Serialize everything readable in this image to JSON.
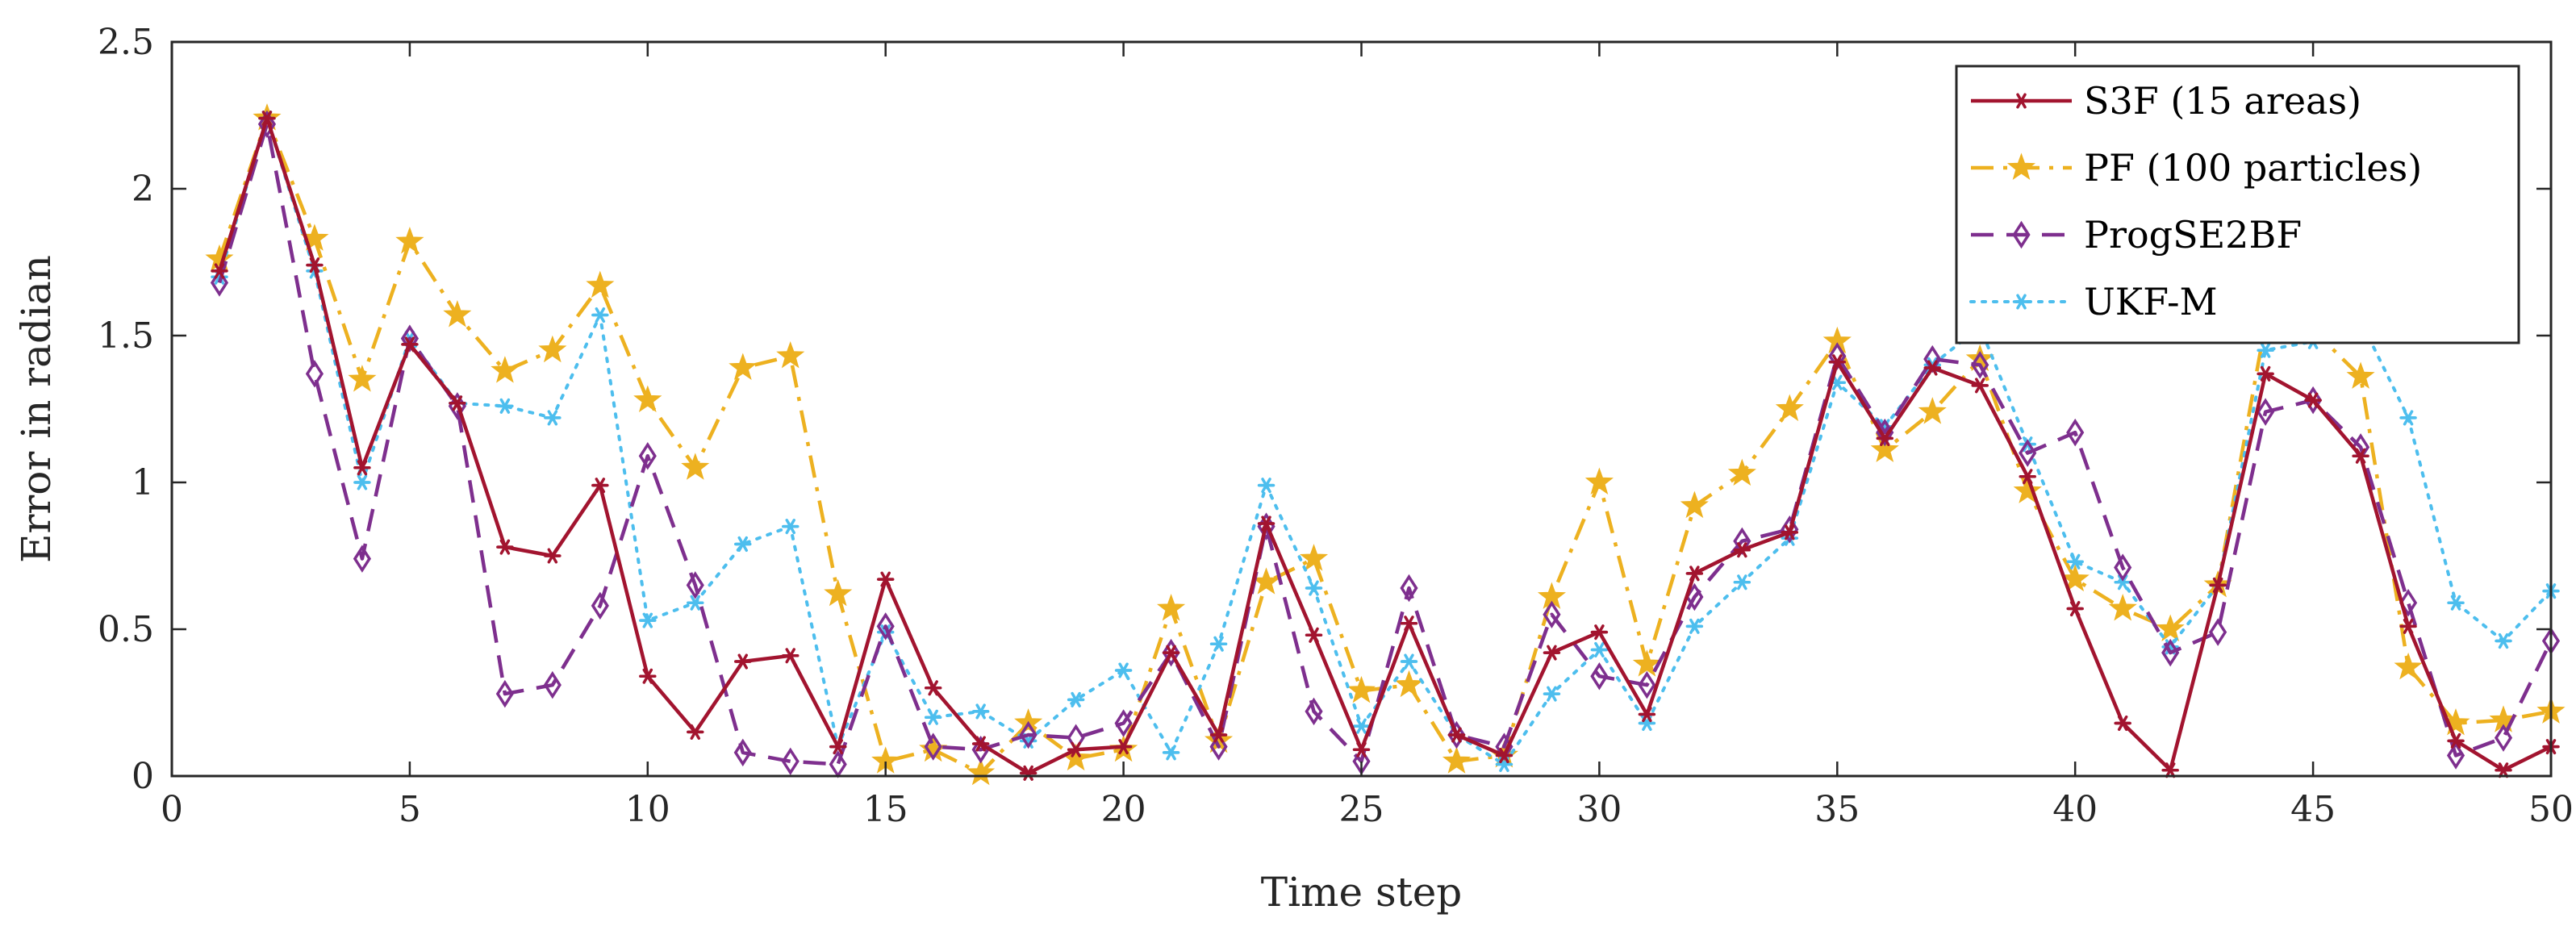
{
  "chart_data": {
    "type": "line",
    "title": "",
    "xlabel": "Time step",
    "ylabel": "Error in radian",
    "xlim": [
      0,
      50
    ],
    "ylim": [
      0,
      2.5
    ],
    "xticks": [
      0,
      5,
      10,
      15,
      20,
      25,
      30,
      35,
      40,
      45,
      50
    ],
    "yticks": [
      0,
      0.5,
      1,
      1.5,
      2,
      2.5
    ],
    "xtick_labels": [
      "0",
      "5",
      "10",
      "15",
      "20",
      "25",
      "30",
      "35",
      "40",
      "45",
      "50"
    ],
    "ytick_labels": [
      "0",
      "0.5",
      "1",
      "1.5",
      "2",
      "2.5"
    ],
    "legend_position": "top-right",
    "x": [
      1,
      2,
      3,
      4,
      5,
      6,
      7,
      8,
      9,
      10,
      11,
      12,
      13,
      14,
      15,
      16,
      17,
      18,
      19,
      20,
      21,
      22,
      23,
      24,
      25,
      26,
      27,
      28,
      29,
      30,
      31,
      32,
      33,
      34,
      35,
      36,
      37,
      38,
      39,
      40,
      41,
      42,
      43,
      44,
      45,
      46,
      47,
      48,
      49,
      50
    ],
    "series": [
      {
        "name": "S3F (15 areas)",
        "color": "#A2142F",
        "dash": "solid",
        "marker": "asterisk",
        "values": [
          1.72,
          2.24,
          1.74,
          1.05,
          1.47,
          1.27,
          0.78,
          0.75,
          0.99,
          0.34,
          0.15,
          0.39,
          0.41,
          0.1,
          0.67,
          0.3,
          0.11,
          0.01,
          0.09,
          0.1,
          0.42,
          0.14,
          0.86,
          0.48,
          0.09,
          0.52,
          0.14,
          0.07,
          0.42,
          0.49,
          0.21,
          0.69,
          0.77,
          0.83,
          1.41,
          1.15,
          1.39,
          1.33,
          1.02,
          0.57,
          0.18,
          0.02,
          0.65,
          1.37,
          1.28,
          1.09,
          0.51,
          0.12,
          0.02,
          0.1
        ]
      },
      {
        "name": "PF (100 particles)",
        "color": "#EDB120",
        "dash": "dashdot",
        "marker": "star",
        "values": [
          1.76,
          2.24,
          1.83,
          1.35,
          1.82,
          1.57,
          1.38,
          1.45,
          1.67,
          1.28,
          1.05,
          1.39,
          1.43,
          0.62,
          0.05,
          0.09,
          0.01,
          0.18,
          0.06,
          0.09,
          0.57,
          0.12,
          0.66,
          0.74,
          0.29,
          0.31,
          0.05,
          0.07,
          0.61,
          1.0,
          0.38,
          0.92,
          1.03,
          1.25,
          1.48,
          1.11,
          1.24,
          1.42,
          0.97,
          0.67,
          0.57,
          0.5,
          0.65,
          1.54,
          1.52,
          1.36,
          0.37,
          0.18,
          0.19,
          0.22
        ]
      },
      {
        "name": "ProgSE2BF",
        "color": "#7E2F8E",
        "dash": "dashed",
        "marker": "diamond",
        "values": [
          1.68,
          2.22,
          1.37,
          0.74,
          1.49,
          1.26,
          0.28,
          0.31,
          0.58,
          1.09,
          0.65,
          0.08,
          0.05,
          0.04,
          0.51,
          0.1,
          0.09,
          0.14,
          0.13,
          0.18,
          0.42,
          0.1,
          0.85,
          0.22,
          0.05,
          0.64,
          0.14,
          0.1,
          0.55,
          0.34,
          0.31,
          0.61,
          0.8,
          0.84,
          1.43,
          1.17,
          1.42,
          1.4,
          1.1,
          1.17,
          0.71,
          0.42,
          0.49,
          1.24,
          1.28,
          1.12,
          0.59,
          0.07,
          0.13,
          0.46
        ]
      },
      {
        "name": "UKF-M",
        "color": "#4DBEEE",
        "dash": "dotted",
        "marker": "asterisk",
        "values": [
          1.7,
          2.24,
          1.72,
          1.0,
          1.49,
          1.27,
          1.26,
          1.22,
          1.57,
          0.53,
          0.59,
          0.79,
          0.85,
          0.1,
          0.49,
          0.2,
          0.22,
          0.12,
          0.26,
          0.36,
          0.08,
          0.45,
          0.99,
          0.64,
          0.17,
          0.39,
          0.14,
          0.04,
          0.28,
          0.43,
          0.18,
          0.51,
          0.66,
          0.81,
          1.34,
          1.19,
          1.4,
          1.53,
          1.13,
          0.73,
          0.66,
          0.44,
          0.65,
          1.45,
          1.48,
          1.55,
          1.22,
          0.59,
          0.46,
          0.63
        ]
      }
    ]
  }
}
